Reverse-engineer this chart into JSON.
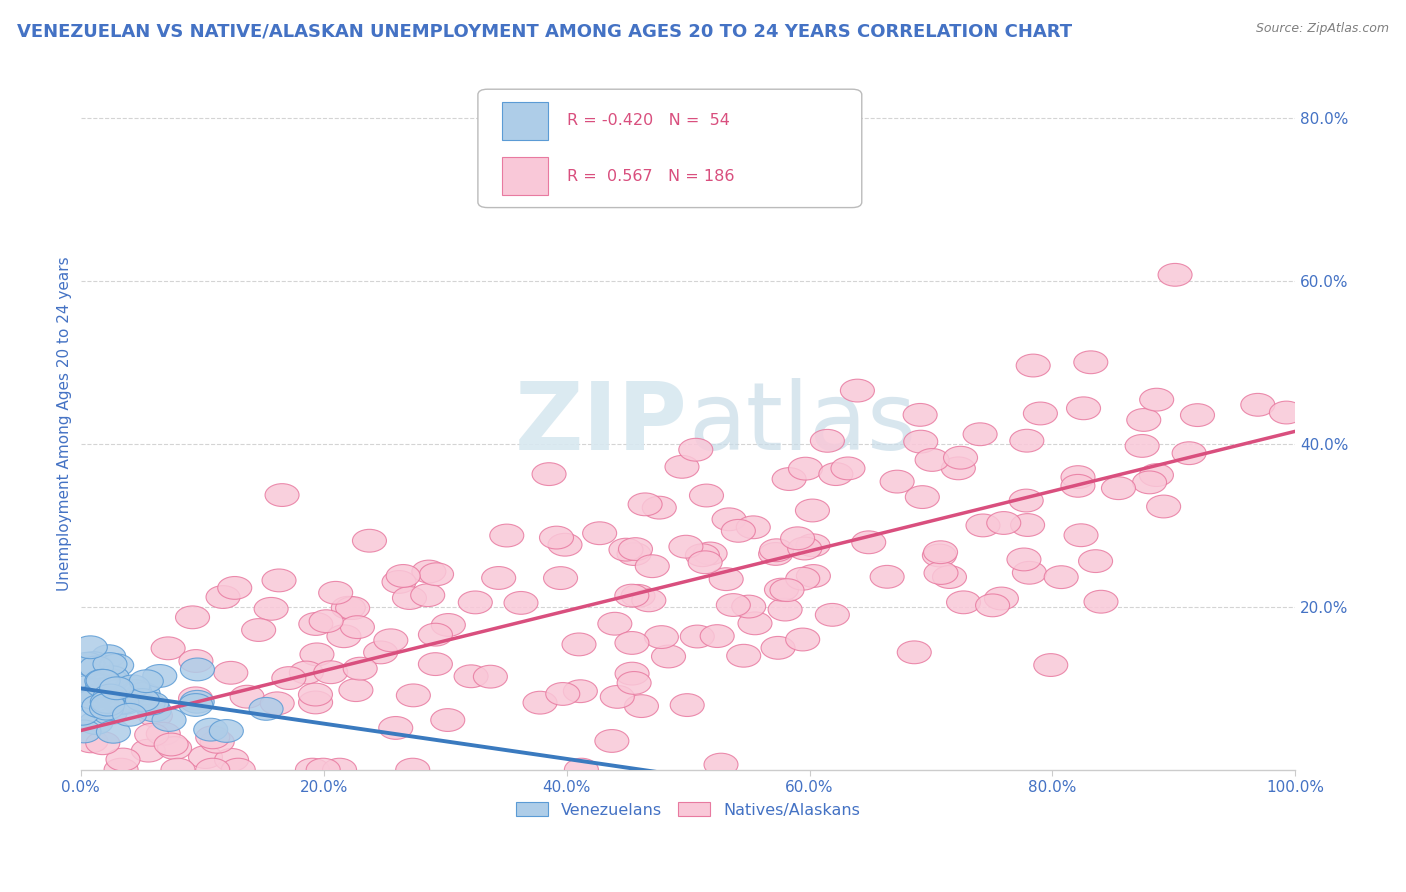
{
  "title": "VENEZUELAN VS NATIVE/ALASKAN UNEMPLOYMENT AMONG AGES 20 TO 24 YEARS CORRELATION CHART",
  "source": "Source: ZipAtlas.com",
  "ylabel": "Unemployment Among Ages 20 to 24 years",
  "xlim": [
    0.0,
    1.0
  ],
  "ylim": [
    0.0,
    0.85
  ],
  "xticks": [
    0.0,
    0.2,
    0.4,
    0.6,
    0.8,
    1.0
  ],
  "yticks": [
    0.2,
    0.4,
    0.6,
    0.8
  ],
  "xticklabels": [
    "0.0%",
    "20.0%",
    "40.0%",
    "60.0%",
    "80.0%",
    "100.0%"
  ],
  "yticklabels_right": [
    "20.0%",
    "40.0%",
    "60.0%",
    "80.0%"
  ],
  "watermark": "ZIPatlas",
  "legend_R1": "-0.420",
  "legend_N1": "54",
  "legend_R2": "0.567",
  "legend_N2": "186",
  "blue_fill": "#aecde8",
  "pink_fill": "#f9c8d8",
  "blue_edge": "#5b9bd5",
  "pink_edge": "#e87aa0",
  "blue_line": "#3a7abf",
  "pink_line": "#d94f7e",
  "title_color": "#4472c4",
  "label_color": "#4472c4",
  "source_color": "#808080",
  "background_color": "#ffffff",
  "grid_color": "#d0d0d0",
  "watermark_color": "#d8e8f0",
  "legend_text_color": "#4472c4",
  "legend_val_color": "#d94f7e"
}
